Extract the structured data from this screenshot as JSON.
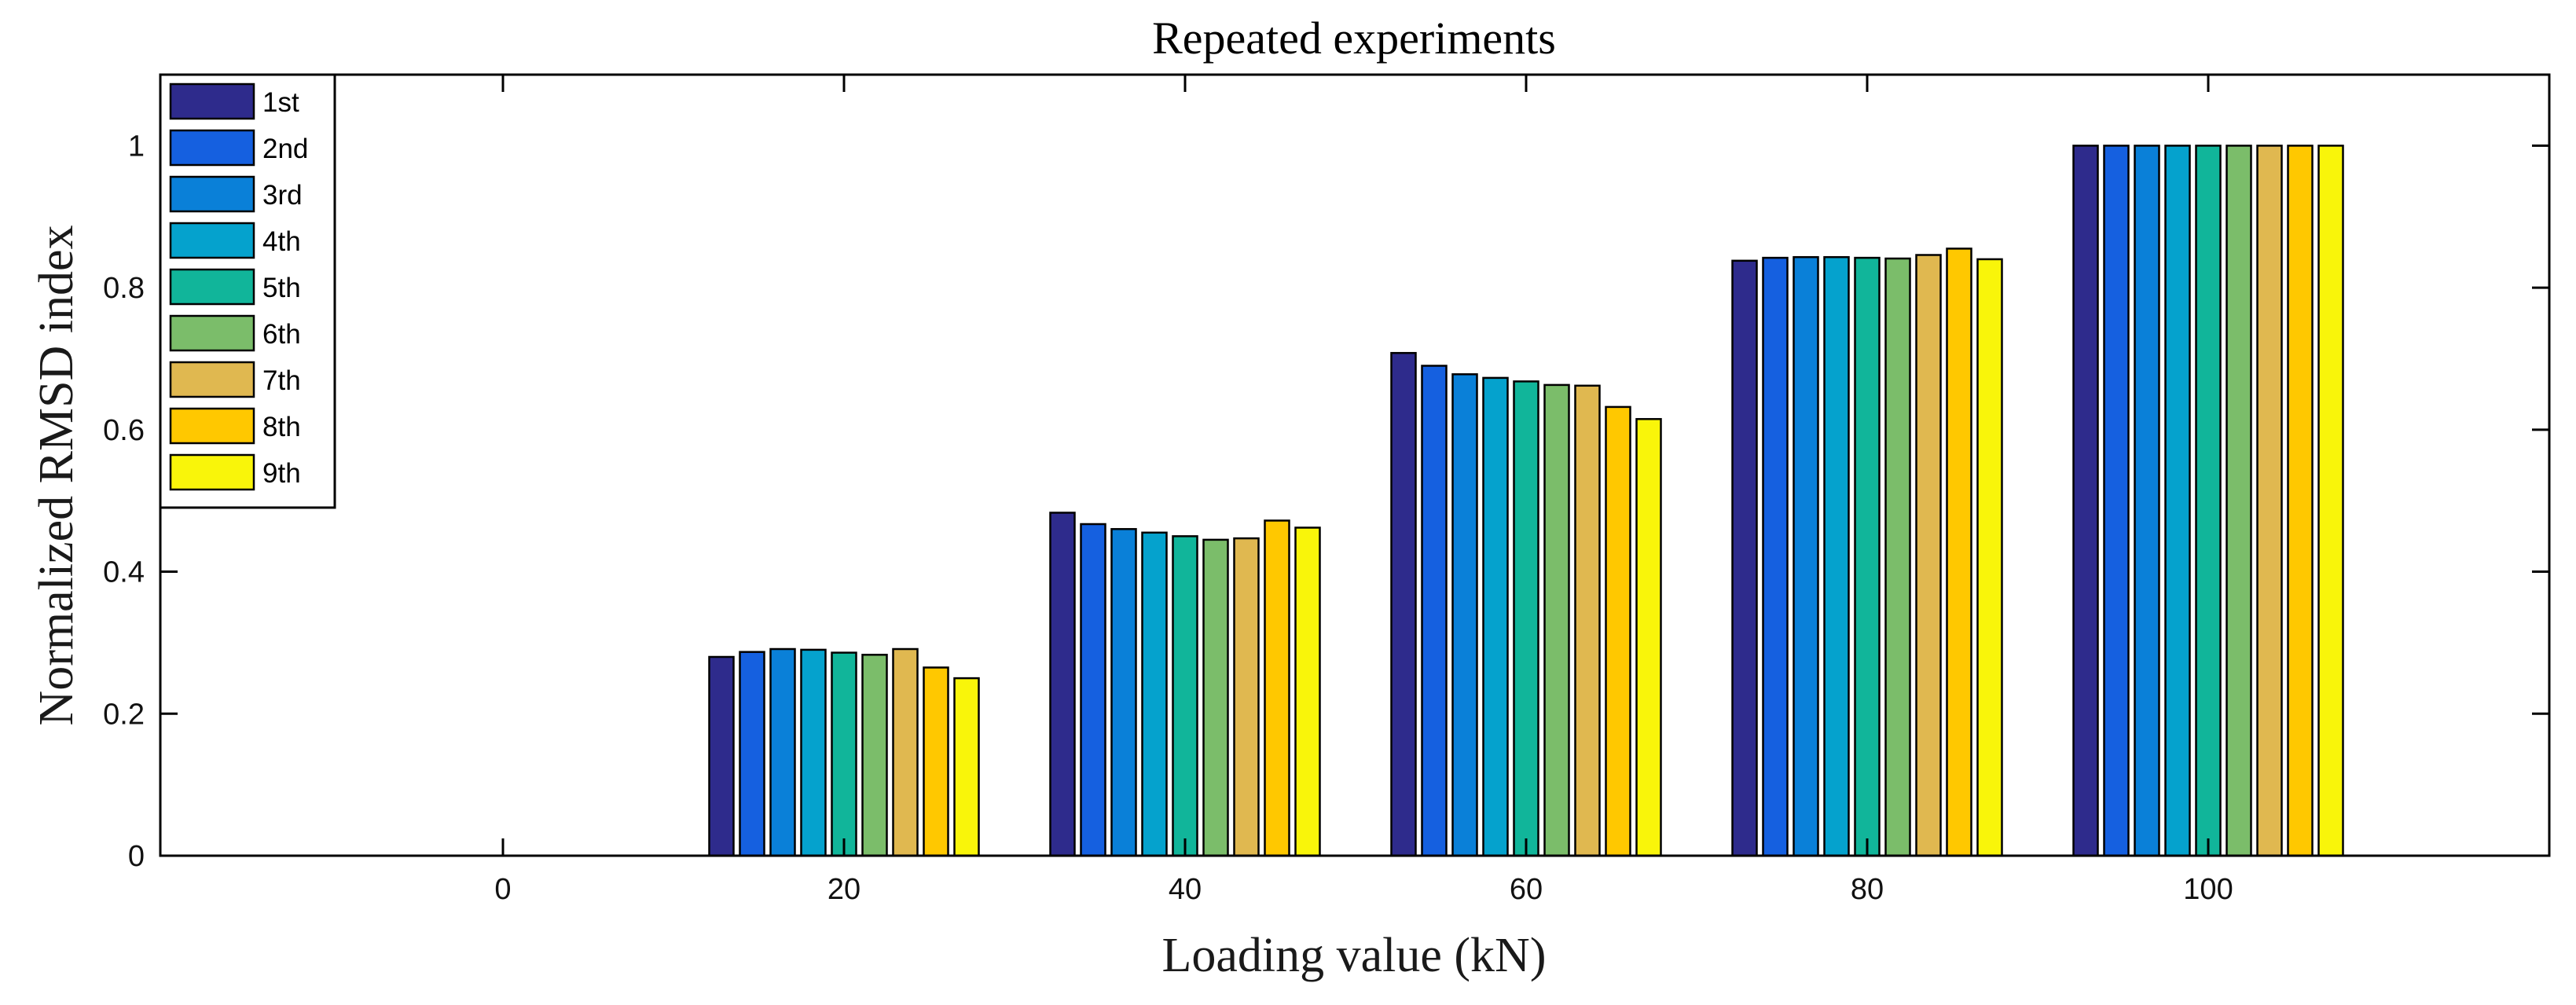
{
  "chart_data": {
    "type": "bar",
    "title": "Repeated experiments",
    "xlabel": "Loading value (kN)",
    "ylabel": "Normalized RMSD index",
    "categories": [
      "0",
      "20",
      "40",
      "60",
      "80",
      "100"
    ],
    "ylim": [
      0,
      1.1
    ],
    "yticks": [
      "0",
      "0.2",
      "0.4",
      "0.6",
      "0.8",
      "1"
    ],
    "ytick_values": [
      0,
      0.2,
      0.4,
      0.6,
      0.8,
      1
    ],
    "grid": false,
    "legend_position": "top-left",
    "series": [
      {
        "name": "1st",
        "color": "#2E2B8C",
        "values": [
          0,
          0.28,
          0.483,
          0.708,
          0.838,
          1
        ]
      },
      {
        "name": "2nd",
        "color": "#1560E0",
        "values": [
          0,
          0.287,
          0.467,
          0.69,
          0.842,
          1
        ]
      },
      {
        "name": "3rd",
        "color": "#0A80D8",
        "values": [
          0,
          0.291,
          0.46,
          0.678,
          0.843,
          1
        ]
      },
      {
        "name": "4th",
        "color": "#05A2CD",
        "values": [
          0,
          0.29,
          0.455,
          0.673,
          0.843,
          1
        ]
      },
      {
        "name": "5th",
        "color": "#11B59A",
        "values": [
          0,
          0.286,
          0.45,
          0.668,
          0.842,
          1
        ]
      },
      {
        "name": "6th",
        "color": "#7BBD6A",
        "values": [
          0,
          0.283,
          0.445,
          0.663,
          0.841,
          1
        ]
      },
      {
        "name": "7th",
        "color": "#E0B850",
        "values": [
          0,
          0.291,
          0.447,
          0.662,
          0.846,
          1
        ]
      },
      {
        "name": "8th",
        "color": "#FFC800",
        "values": [
          0,
          0.265,
          0.472,
          0.632,
          0.855,
          1
        ]
      },
      {
        "name": "9th",
        "color": "#F9F50A",
        "values": [
          0,
          0.25,
          0.462,
          0.615,
          0.84,
          1
        ]
      }
    ]
  }
}
